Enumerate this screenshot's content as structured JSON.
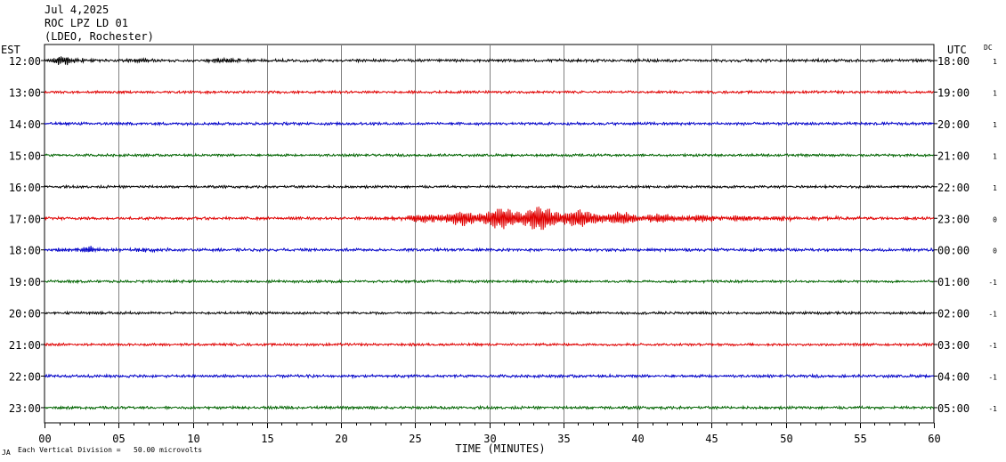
{
  "header": {
    "date": "Jul 4,2025",
    "station": "ROC LPZ LD 01",
    "network": "(LDEO, Rochester)"
  },
  "left_zone": "EST",
  "right_zone": "UTC",
  "dc_label": "DC",
  "footer": {
    "note": "Each Vertical Division =   50.00 microvolts",
    "mark": "JA"
  },
  "chart_data": {
    "type": "line",
    "title": "",
    "xlabel": "TIME (MINUTES)",
    "xlim": [
      0,
      60
    ],
    "x_ticks": [
      "00",
      "05",
      "10",
      "15",
      "20",
      "25",
      "30",
      "35",
      "40",
      "45",
      "50",
      "55",
      "60"
    ],
    "grid": true,
    "trace_colors": [
      "#000000",
      "#e00000",
      "#0000c8",
      "#006400"
    ],
    "rows": [
      {
        "est": "12:00",
        "utc": "18:00",
        "dc": "1",
        "amplitude": 1.0,
        "events": [
          {
            "start": 0.0,
            "peak": 1.5,
            "end": 5.0,
            "gain": 6.5
          },
          {
            "start": 5.0,
            "peak": 6.5,
            "end": 9.0,
            "gain": 2.5
          },
          {
            "start": 10.0,
            "peak": 12.8,
            "end": 16.0,
            "gain": 3.0
          }
        ]
      },
      {
        "est": "13:00",
        "utc": "19:00",
        "dc": "1",
        "amplitude": 0.9,
        "events": []
      },
      {
        "est": "14:00",
        "utc": "20:00",
        "dc": "1",
        "amplitude": 1.0,
        "events": []
      },
      {
        "est": "15:00",
        "utc": "21:00",
        "dc": "1",
        "amplitude": 0.9,
        "events": []
      },
      {
        "est": "16:00",
        "utc": "22:00",
        "dc": "1",
        "amplitude": 0.9,
        "events": []
      },
      {
        "est": "17:00",
        "utc": "23:00",
        "dc": "0",
        "amplitude": 1.0,
        "events": [
          {
            "start": 22.0,
            "peak": 33.0,
            "end": 60.0,
            "gain": 14.0
          }
        ]
      },
      {
        "est": "18:00",
        "utc": "00:00",
        "dc": "0",
        "amplitude": 1.0,
        "events": [
          {
            "start": 0.0,
            "peak": 3.0,
            "end": 6.0,
            "gain": 3.5
          },
          {
            "start": 5.0,
            "peak": 7.5,
            "end": 11.0,
            "gain": 2.0
          },
          {
            "start": 14.0,
            "peak": 16.0,
            "end": 18.0,
            "gain": 1.5
          }
        ]
      },
      {
        "est": "19:00",
        "utc": "01:00",
        "dc": "-1",
        "amplitude": 0.9,
        "events": []
      },
      {
        "est": "20:00",
        "utc": "02:00",
        "dc": "-1",
        "amplitude": 0.9,
        "events": []
      },
      {
        "est": "21:00",
        "utc": "03:00",
        "dc": "-1",
        "amplitude": 0.9,
        "events": []
      },
      {
        "est": "22:00",
        "utc": "04:00",
        "dc": "-1",
        "amplitude": 1.0,
        "events": []
      },
      {
        "est": "23:00",
        "utc": "05:00",
        "dc": "-1",
        "amplitude": 1.0,
        "events": []
      }
    ]
  }
}
